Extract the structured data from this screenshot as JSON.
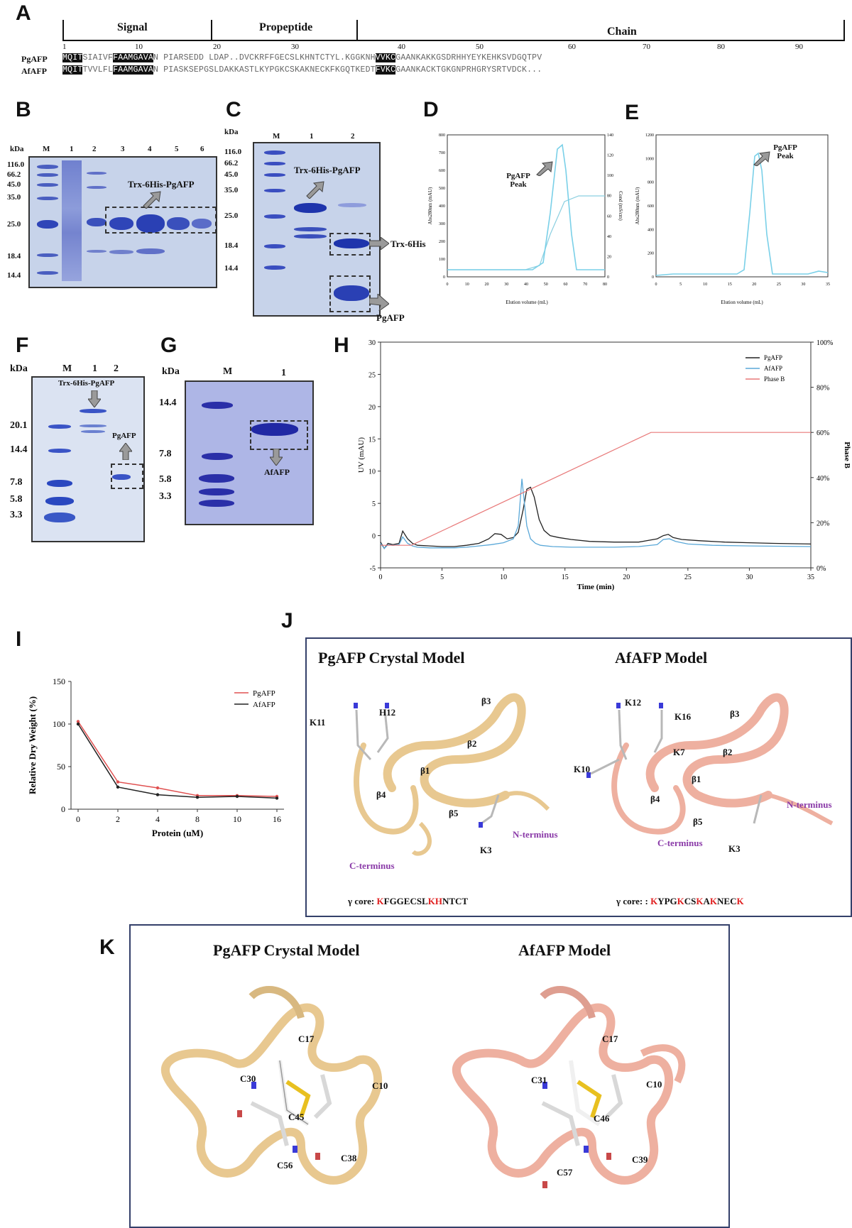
{
  "panels": {
    "a": "A",
    "b": "B",
    "c": "C",
    "d": "D",
    "e": "E",
    "f": "F",
    "g": "G",
    "h": "H",
    "i": "I",
    "j": "J",
    "k": "K"
  },
  "panel_a": {
    "regions": [
      "Signal",
      "Propeptide",
      "Chain"
    ],
    "ticks": [
      "1",
      "10",
      "20",
      "30",
      "40",
      "50",
      "60",
      "70",
      "80",
      "90"
    ],
    "seq_names": [
      "PgAFP",
      "AfAFP"
    ],
    "seq_pg": "MQITSIAIVFFAAMGAVAN PIARSEDD LDAP..DVCKRFFGECSLKHNTCTYL.KGGKNHVVKCGAANKAKKGSDRHHYEYKEHKSVDGQTPV",
    "seq_af": "MQITTVVLFLFAAMGAVAN PIASKSEPGSLDAKKASTLKYPGKCSKAKNECKFKGQTKEDTFVKCGAANKACKTGKGNPRHGRYSRTVDCK..."
  },
  "panel_b": {
    "kda": "kDa",
    "lanes": [
      "M",
      "1",
      "2",
      "3",
      "4",
      "5",
      "6"
    ],
    "markers": [
      "116.0",
      "66.2",
      "45.0",
      "35.0",
      "25.0",
      "18.4",
      "14.4"
    ],
    "annotation": "Trx-6His-PgAFP"
  },
  "panel_c": {
    "kda": "kDa",
    "lanes": [
      "M",
      "1",
      "2"
    ],
    "markers": [
      "116.0",
      "66.2",
      "45.0",
      "35.0",
      "25.0",
      "18.4",
      "14.4"
    ],
    "annotations": [
      "Trx-6His-PgAFP",
      "Trx-6His",
      "PgAFP"
    ]
  },
  "panel_d": {
    "peak": "PgAFP Peak",
    "xlabel": "Elution volume (mL)",
    "ylabel_left": "Abs280nm (mAU)",
    "ylabel_right": "Cond (mS/cm)",
    "xticks": [
      "0",
      "10",
      "20",
      "30",
      "40",
      "50",
      "60",
      "70",
      "80"
    ],
    "yticks": [
      "0",
      "100",
      "200",
      "300",
      "400",
      "500",
      "600",
      "700",
      "800"
    ],
    "yticks_right": [
      "0",
      "20",
      "40",
      "60",
      "80",
      "100",
      "120",
      "140"
    ]
  },
  "panel_e": {
    "peak": "PgAFP Peak",
    "xlabel": "Elution volume (mL)",
    "ylabel": "Abs280nm (mAU)",
    "xticks": [
      "0",
      "5",
      "10",
      "15",
      "20",
      "25",
      "30",
      "35"
    ],
    "yticks": [
      "0",
      "200",
      "400",
      "600",
      "800",
      "1000",
      "1200"
    ]
  },
  "panel_f": {
    "kda": "kDa",
    "lanes": [
      "M",
      "1",
      "2"
    ],
    "markers": [
      "20.1",
      "14.4",
      "7.8",
      "5.8",
      "3.3"
    ],
    "annotations": [
      "Trx-6His-PgAFP",
      "PgAFP"
    ]
  },
  "panel_g": {
    "kda": "kDa",
    "lanes": [
      "M",
      "1"
    ],
    "markers": [
      "14.4",
      "7.8",
      "5.8",
      "3.3"
    ],
    "annotation": "AfAFP"
  },
  "chart_data": [
    {
      "type": "line",
      "panel": "H",
      "xlabel": "Time (min)",
      "ylabel": "UV (mAU)",
      "ylabel_right": "Phase B",
      "xlim": [
        0,
        35
      ],
      "ylim": [
        -5,
        30
      ],
      "ylim_right": [
        0,
        100
      ],
      "xticks": [
        "0",
        "5",
        "10",
        "15",
        "20",
        "25",
        "30",
        "35"
      ],
      "yticks": [
        "-5",
        "0",
        "5",
        "10",
        "15",
        "20",
        "25",
        "30"
      ],
      "yticks_right": [
        "0%",
        "20%",
        "40%",
        "60%",
        "80%",
        "100%"
      ],
      "legend_position": "top-right",
      "series": [
        {
          "name": "PgAFP",
          "color": "#222222",
          "x": [
            0,
            0.3,
            0.6,
            1,
            1.5,
            1.8,
            2.2,
            2.6,
            3,
            4,
            5,
            6,
            7,
            8,
            8.8,
            9.3,
            9.8,
            10.3,
            10.8,
            11.2,
            11.6,
            11.9,
            12.2,
            12.5,
            12.9,
            13.3,
            13.8,
            14.5,
            15.5,
            17,
            19,
            21,
            22.5,
            23,
            23.4,
            23.8,
            24.5,
            26,
            28,
            30,
            32,
            35
          ],
          "y": [
            -1,
            -2,
            -1.2,
            -1.4,
            -1.2,
            0.7,
            -0.5,
            -1.2,
            -1.5,
            -1.6,
            -1.7,
            -1.7,
            -1.5,
            -1.2,
            -0.5,
            0.3,
            0.2,
            -0.5,
            -0.3,
            0.5,
            4,
            7.2,
            7.5,
            6,
            2.5,
            0.8,
            0,
            -0.3,
            -0.6,
            -0.9,
            -1,
            -1,
            -0.5,
            0,
            0.2,
            -0.3,
            -0.6,
            -0.8,
            -1,
            -1.1,
            -1.2,
            -1.3
          ]
        },
        {
          "name": "AfAFP",
          "color": "#5aa8d8",
          "x": [
            0,
            0.3,
            0.6,
            1,
            1.5,
            1.8,
            2.2,
            2.6,
            3,
            4,
            5,
            6,
            7,
            8,
            9,
            10,
            10.8,
            11.2,
            11.5,
            11.7,
            11.9,
            12.2,
            12.6,
            13,
            14,
            15.5,
            17,
            19,
            21,
            22.5,
            23,
            23.5,
            24,
            25,
            27,
            30,
            35
          ],
          "y": [
            -1.2,
            -2,
            -1.4,
            -1.5,
            -1.4,
            -0.2,
            -1.2,
            -1.6,
            -1.8,
            -1.9,
            -1.9,
            -1.9,
            -1.8,
            -1.6,
            -1.4,
            -1.1,
            -0.5,
            1.5,
            8.8,
            5,
            1.5,
            -0.5,
            -1.2,
            -1.5,
            -1.7,
            -1.8,
            -1.8,
            -1.8,
            -1.7,
            -1.4,
            -0.6,
            -0.5,
            -0.9,
            -1.3,
            -1.5,
            -1.6,
            -1.7
          ]
        },
        {
          "name": "Phase B",
          "color": "#e87878",
          "axis": "right",
          "x": [
            0,
            2.5,
            22,
            35
          ],
          "y": [
            10,
            10,
            60,
            60
          ]
        }
      ]
    },
    {
      "type": "line",
      "panel": "I",
      "xlabel": "Protein (uM)",
      "ylabel": "Relative Dry Weight (%)",
      "categories": [
        "0",
        "2",
        "4",
        "8",
        "10",
        "16"
      ],
      "ylim": [
        0,
        150
      ],
      "yticks": [
        "0",
        "50",
        "100",
        "150"
      ],
      "legend_position": "top-right",
      "series": [
        {
          "name": "PgAFP",
          "color": "#e05050",
          "values": [
            103,
            32,
            25,
            16,
            16,
            15
          ]
        },
        {
          "name": "AfAFP",
          "color": "#222222",
          "values": [
            100,
            26,
            17,
            14,
            15,
            13
          ]
        }
      ]
    }
  ],
  "panel_j": {
    "left_title": "PgAFP Crystal Model",
    "right_title": "AfAFP  Model",
    "left_labels": [
      "K11",
      "H12",
      "β3",
      "β2",
      "β1",
      "β4",
      "β5",
      "N-terminus",
      "K3",
      "C-terminus"
    ],
    "right_labels": [
      "K12",
      "K16",
      "β3",
      "K7",
      "β2",
      "K10",
      "β1",
      "β4",
      "β5",
      "N-terminus",
      "C-terminus",
      "K3"
    ],
    "left_core_prefix": "γ core: ",
    "left_core": [
      [
        "K",
        "red"
      ],
      [
        "FGGECSL",
        "black"
      ],
      [
        "KH",
        "red"
      ],
      [
        "NTCT",
        "black"
      ]
    ],
    "right_core_prefix": "γ core: : ",
    "right_core": [
      [
        "K",
        "red"
      ],
      [
        "YPG",
        "black"
      ],
      [
        "K",
        "red"
      ],
      [
        "CS",
        "black"
      ],
      [
        "K",
        "red"
      ],
      [
        "A",
        "black"
      ],
      [
        "K",
        "red"
      ],
      [
        "NEC",
        "black"
      ],
      [
        "K",
        "red"
      ]
    ]
  },
  "panel_k": {
    "left_title": "PgAFP Crystal Model",
    "right_title": "AfAFP  Model",
    "left_labels": [
      "C17",
      "C30",
      "C10",
      "C45",
      "C56",
      "C38"
    ],
    "right_labels": [
      "C17",
      "C31",
      "C10",
      "C46",
      "C57",
      "C39"
    ]
  },
  "colors": {
    "pg_ribbon": "#e8c890",
    "af_ribbon": "#eeb0a0",
    "gel_bg": "#c7d3ea",
    "band": "#2f45b8",
    "frame": "#34406a"
  }
}
